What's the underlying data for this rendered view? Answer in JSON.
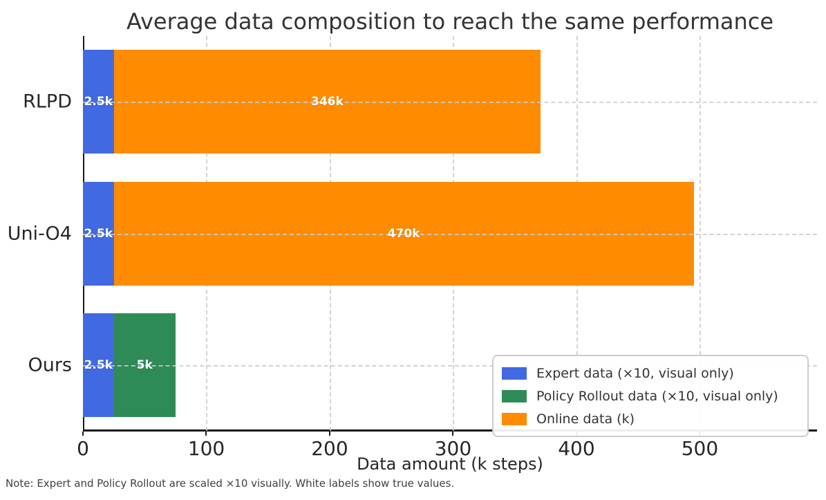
{
  "title": "Average data composition to reach the same performance",
  "xlabel": "Data amount (k steps)",
  "note": "Note: Expert and Policy Rollout are scaled ×10 visually. White labels show true values.",
  "colors": {
    "expert_blue": "#4169E1",
    "rollout_green": "#2E8B57",
    "online_orange": "#FF8C00",
    "grid": "#CCCCCC",
    "spine": "#1A1A1A",
    "text": "#333333"
  },
  "legend": {
    "items": [
      {
        "label": "Expert data (×10, visual only)",
        "color": "#4169E1"
      },
      {
        "label": "Policy Rollout data (×10, visual only)",
        "color": "#2E8B57"
      },
      {
        "label": "Online data (k)",
        "color": "#FF8C00"
      }
    ]
  },
  "chart_data": {
    "type": "bar",
    "orientation": "horizontal",
    "stacked": true,
    "grid": "dashed",
    "categories": [
      "RLPD",
      "Uni-O4",
      "Ours"
    ],
    "series": [
      {
        "name": "Expert data (×10, visual only)",
        "color": "#4169E1",
        "true_values_k": [
          2.5,
          2.5,
          2.5
        ],
        "visual_values": [
          25,
          25,
          25
        ],
        "labels": [
          "2.5k",
          "2.5k",
          "2.5k"
        ]
      },
      {
        "name": "Policy Rollout data (×10, visual only)",
        "color": "#2E8B57",
        "true_values_k": [
          0,
          0,
          5
        ],
        "visual_values": [
          0,
          0,
          50
        ],
        "labels": [
          "",
          "",
          "5k"
        ]
      },
      {
        "name": "Online data (k)",
        "color": "#FF8C00",
        "true_values_k": [
          346,
          470,
          0
        ],
        "visual_values": [
          346,
          470,
          0
        ],
        "labels": [
          "346k",
          "470k",
          ""
        ]
      }
    ],
    "x_ticks": [
      0,
      100,
      200,
      300,
      400,
      500
    ],
    "xlim": [
      0,
      595
    ],
    "legend_position": "lower right",
    "xlabel": "Data amount (k steps)",
    "title": "Average data composition to reach the same performance"
  }
}
